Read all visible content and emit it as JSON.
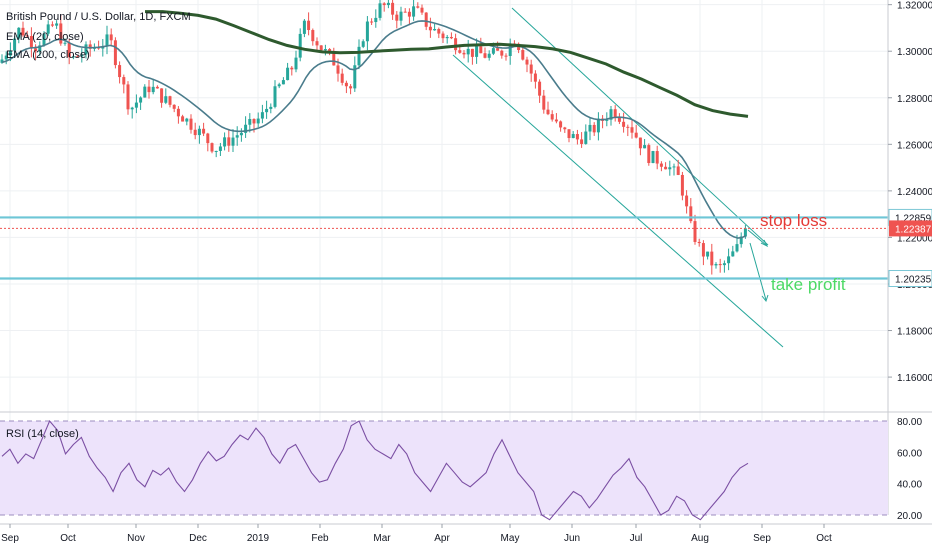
{
  "chart_data": {
    "type": "candlestick",
    "symbol_title": "British Pound / U.S. Dollar, 1D, FXCM",
    "indicators": [
      "EMA (20, close)",
      "EMA (200, close)"
    ],
    "price_axis": {
      "ylim": [
        1.145,
        1.322
      ],
      "ticks": [
        "1.32000",
        "1.30000",
        "1.28000",
        "1.26000",
        "1.24000",
        "1.22000",
        "1.20000",
        "1.18000",
        "1.16000"
      ]
    },
    "time_axis": {
      "ticks": [
        "Sep",
        "Oct",
        "Nov",
        "Dec",
        "2019",
        "Feb",
        "Mar",
        "Apr",
        "May",
        "Jun",
        "Jul",
        "Aug",
        "Sep",
        "Oct"
      ]
    },
    "levels": [
      {
        "name": "stop-level",
        "value": 1.22859,
        "label": "1.22859",
        "color": "#6ec6d6"
      },
      {
        "name": "take-profit-level",
        "value": 1.20235,
        "label": "1.20235",
        "color": "#6ec6d6"
      },
      {
        "name": "current-price",
        "value": 1.22387,
        "label": "1.22387",
        "color": "#ef5350"
      }
    ],
    "annotations": [
      {
        "text": "stop loss",
        "color": "#e53935"
      },
      {
        "text": "take profit",
        "color": "#4cd964"
      }
    ],
    "rsi": {
      "title": "RSI (14, close)",
      "ylim": [
        15,
        85
      ],
      "ticks": [
        "80.00",
        "60.00",
        "40.00",
        "20.00"
      ],
      "band": [
        30,
        70
      ],
      "values": [
        55,
        58,
        52,
        56,
        54,
        62,
        70,
        66,
        56,
        60,
        63,
        55,
        50,
        46,
        40,
        48,
        52,
        45,
        42,
        49,
        47,
        50,
        44,
        40,
        45,
        52,
        57,
        53,
        55,
        60,
        64,
        62,
        67,
        63,
        56,
        52,
        58,
        60,
        54,
        48,
        44,
        45,
        52,
        58,
        68,
        70,
        62,
        58,
        56,
        54,
        60,
        56,
        48,
        44,
        40,
        46,
        52,
        48,
        44,
        42,
        45,
        48,
        56,
        62,
        55,
        48,
        44,
        40,
        30,
        28,
        32,
        36,
        40,
        38,
        33,
        37,
        42,
        47,
        50,
        54,
        46,
        42,
        36,
        30,
        32,
        38,
        36,
        30,
        28,
        32,
        36,
        40,
        46,
        50,
        52
      ]
    },
    "ema200_values": [
      1.317,
      1.317,
      1.3163,
      1.3154,
      1.3138,
      1.311,
      1.308,
      1.305,
      1.3025,
      1.3008,
      1.2997,
      1.2993,
      1.2995,
      1.3,
      1.3004,
      1.3008,
      1.301,
      1.3018,
      1.3025,
      1.3028,
      1.303,
      1.3025,
      1.302,
      1.301,
      1.2995,
      1.297,
      1.2945,
      1.291,
      1.288,
      1.2845,
      1.281,
      1.277,
      1.2745,
      1.273,
      1.272
    ]
  }
}
